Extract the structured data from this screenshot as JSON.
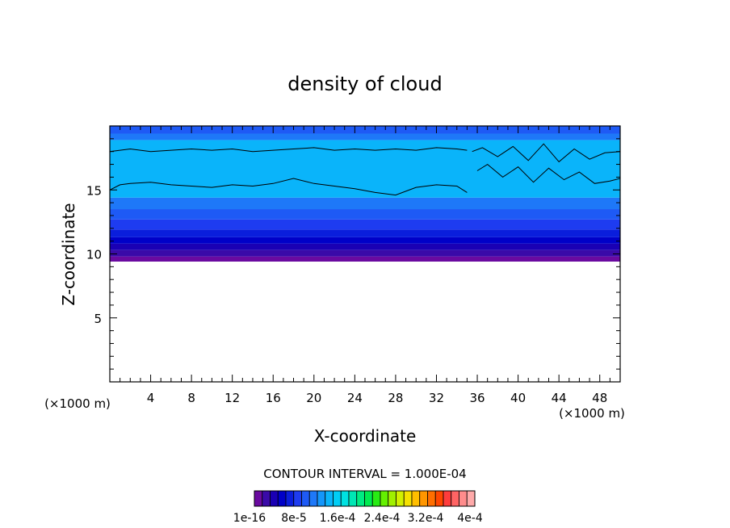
{
  "chart_data": {
    "type": "heatmap",
    "title": "density of cloud",
    "xlabel": "X-coordinate",
    "ylabel": "Z-coordinate",
    "x_unit": "(×1000 m)",
    "y_unit": "(×1000 m)",
    "xlim": [
      0,
      50
    ],
    "ylim": [
      0,
      20
    ],
    "x_ticks": [
      4,
      8,
      12,
      16,
      20,
      24,
      28,
      32,
      36,
      40,
      44,
      48
    ],
    "y_ticks": [
      5,
      10,
      15
    ],
    "grid": false,
    "contour_interval_label": "CONTOUR INTERVAL = 1.000E-04",
    "colorbar": {
      "labels": [
        "1e-16",
        "8e-5",
        "1.6e-4",
        "2.4e-4",
        "3.2e-4",
        "4e-4"
      ],
      "colors": [
        "#6a0aa0",
        "#3a0aa8",
        "#1a00b4",
        "#0000c8",
        "#0a1edc",
        "#1e3cf0",
        "#1e5af5",
        "#1e78f8",
        "#1496fa",
        "#0ab4fa",
        "#00cdf5",
        "#00e1e1",
        "#00e6b4",
        "#00eb82",
        "#00eb50",
        "#28eb14",
        "#64f000",
        "#a0f000",
        "#d2f000",
        "#f5e100",
        "#ffbe00",
        "#ff9600",
        "#ff6e00",
        "#ff4600",
        "#ff3c3c",
        "#ff6464",
        "#ff8c8c",
        "#ffaaaa"
      ]
    },
    "bands": [
      {
        "z_bottom": 9.4,
        "z_top": 9.8,
        "color": "#6a0aa0"
      },
      {
        "z_bottom": 9.8,
        "z_top": 10.3,
        "color": "#3a0aa8"
      },
      {
        "z_bottom": 10.3,
        "z_top": 10.8,
        "color": "#1a00b4"
      },
      {
        "z_bottom": 10.8,
        "z_top": 11.3,
        "color": "#0000c8"
      },
      {
        "z_bottom": 11.3,
        "z_top": 11.9,
        "color": "#0a1edc"
      },
      {
        "z_bottom": 11.9,
        "z_top": 12.7,
        "color": "#1e3cf0"
      },
      {
        "z_bottom": 12.7,
        "z_top": 13.5,
        "color": "#1e5af5"
      },
      {
        "z_bottom": 13.5,
        "z_top": 14.4,
        "color": "#1e78f8"
      },
      {
        "z_bottom": 14.4,
        "z_top": 18.9,
        "color": "#0ab4fa"
      },
      {
        "z_bottom": 18.9,
        "z_top": 19.4,
        "color": "#1e78f8"
      },
      {
        "z_bottom": 19.4,
        "z_top": 20.0,
        "color": "#1e5af5"
      }
    ],
    "contours": [
      {
        "x": [
          0,
          2,
          4,
          6,
          8,
          10,
          12,
          14,
          16,
          18,
          20,
          22,
          24,
          26,
          28,
          30,
          32,
          34,
          35
        ],
        "z": [
          18.0,
          18.2,
          18.0,
          18.1,
          18.2,
          18.1,
          18.2,
          18.0,
          18.1,
          18.2,
          18.3,
          18.1,
          18.2,
          18.1,
          18.2,
          18.1,
          18.3,
          18.2,
          18.1
        ]
      },
      {
        "x": [
          0,
          1,
          2,
          4,
          6,
          8,
          10,
          12,
          14,
          16,
          18,
          20,
          22,
          24,
          26,
          28,
          30,
          32,
          34,
          35
        ],
        "z": [
          15.0,
          15.4,
          15.5,
          15.6,
          15.4,
          15.3,
          15.2,
          15.4,
          15.3,
          15.5,
          15.9,
          15.5,
          15.3,
          15.1,
          14.8,
          14.6,
          15.2,
          15.4,
          15.3,
          14.8
        ]
      },
      {
        "x": [
          35.5,
          36.5,
          38,
          39.5,
          41,
          42.5,
          44,
          45.5,
          47,
          48.5,
          50
        ],
        "z": [
          18.0,
          18.3,
          17.6,
          18.4,
          17.3,
          18.6,
          17.2,
          18.2,
          17.4,
          17.9,
          18.0
        ]
      },
      {
        "x": [
          36,
          37,
          38.5,
          40,
          41.5,
          43,
          44.5,
          46,
          47.5,
          49,
          50
        ],
        "z": [
          16.5,
          17.0,
          16.0,
          16.8,
          15.6,
          16.7,
          15.8,
          16.4,
          15.5,
          15.7,
          15.9
        ]
      }
    ]
  }
}
